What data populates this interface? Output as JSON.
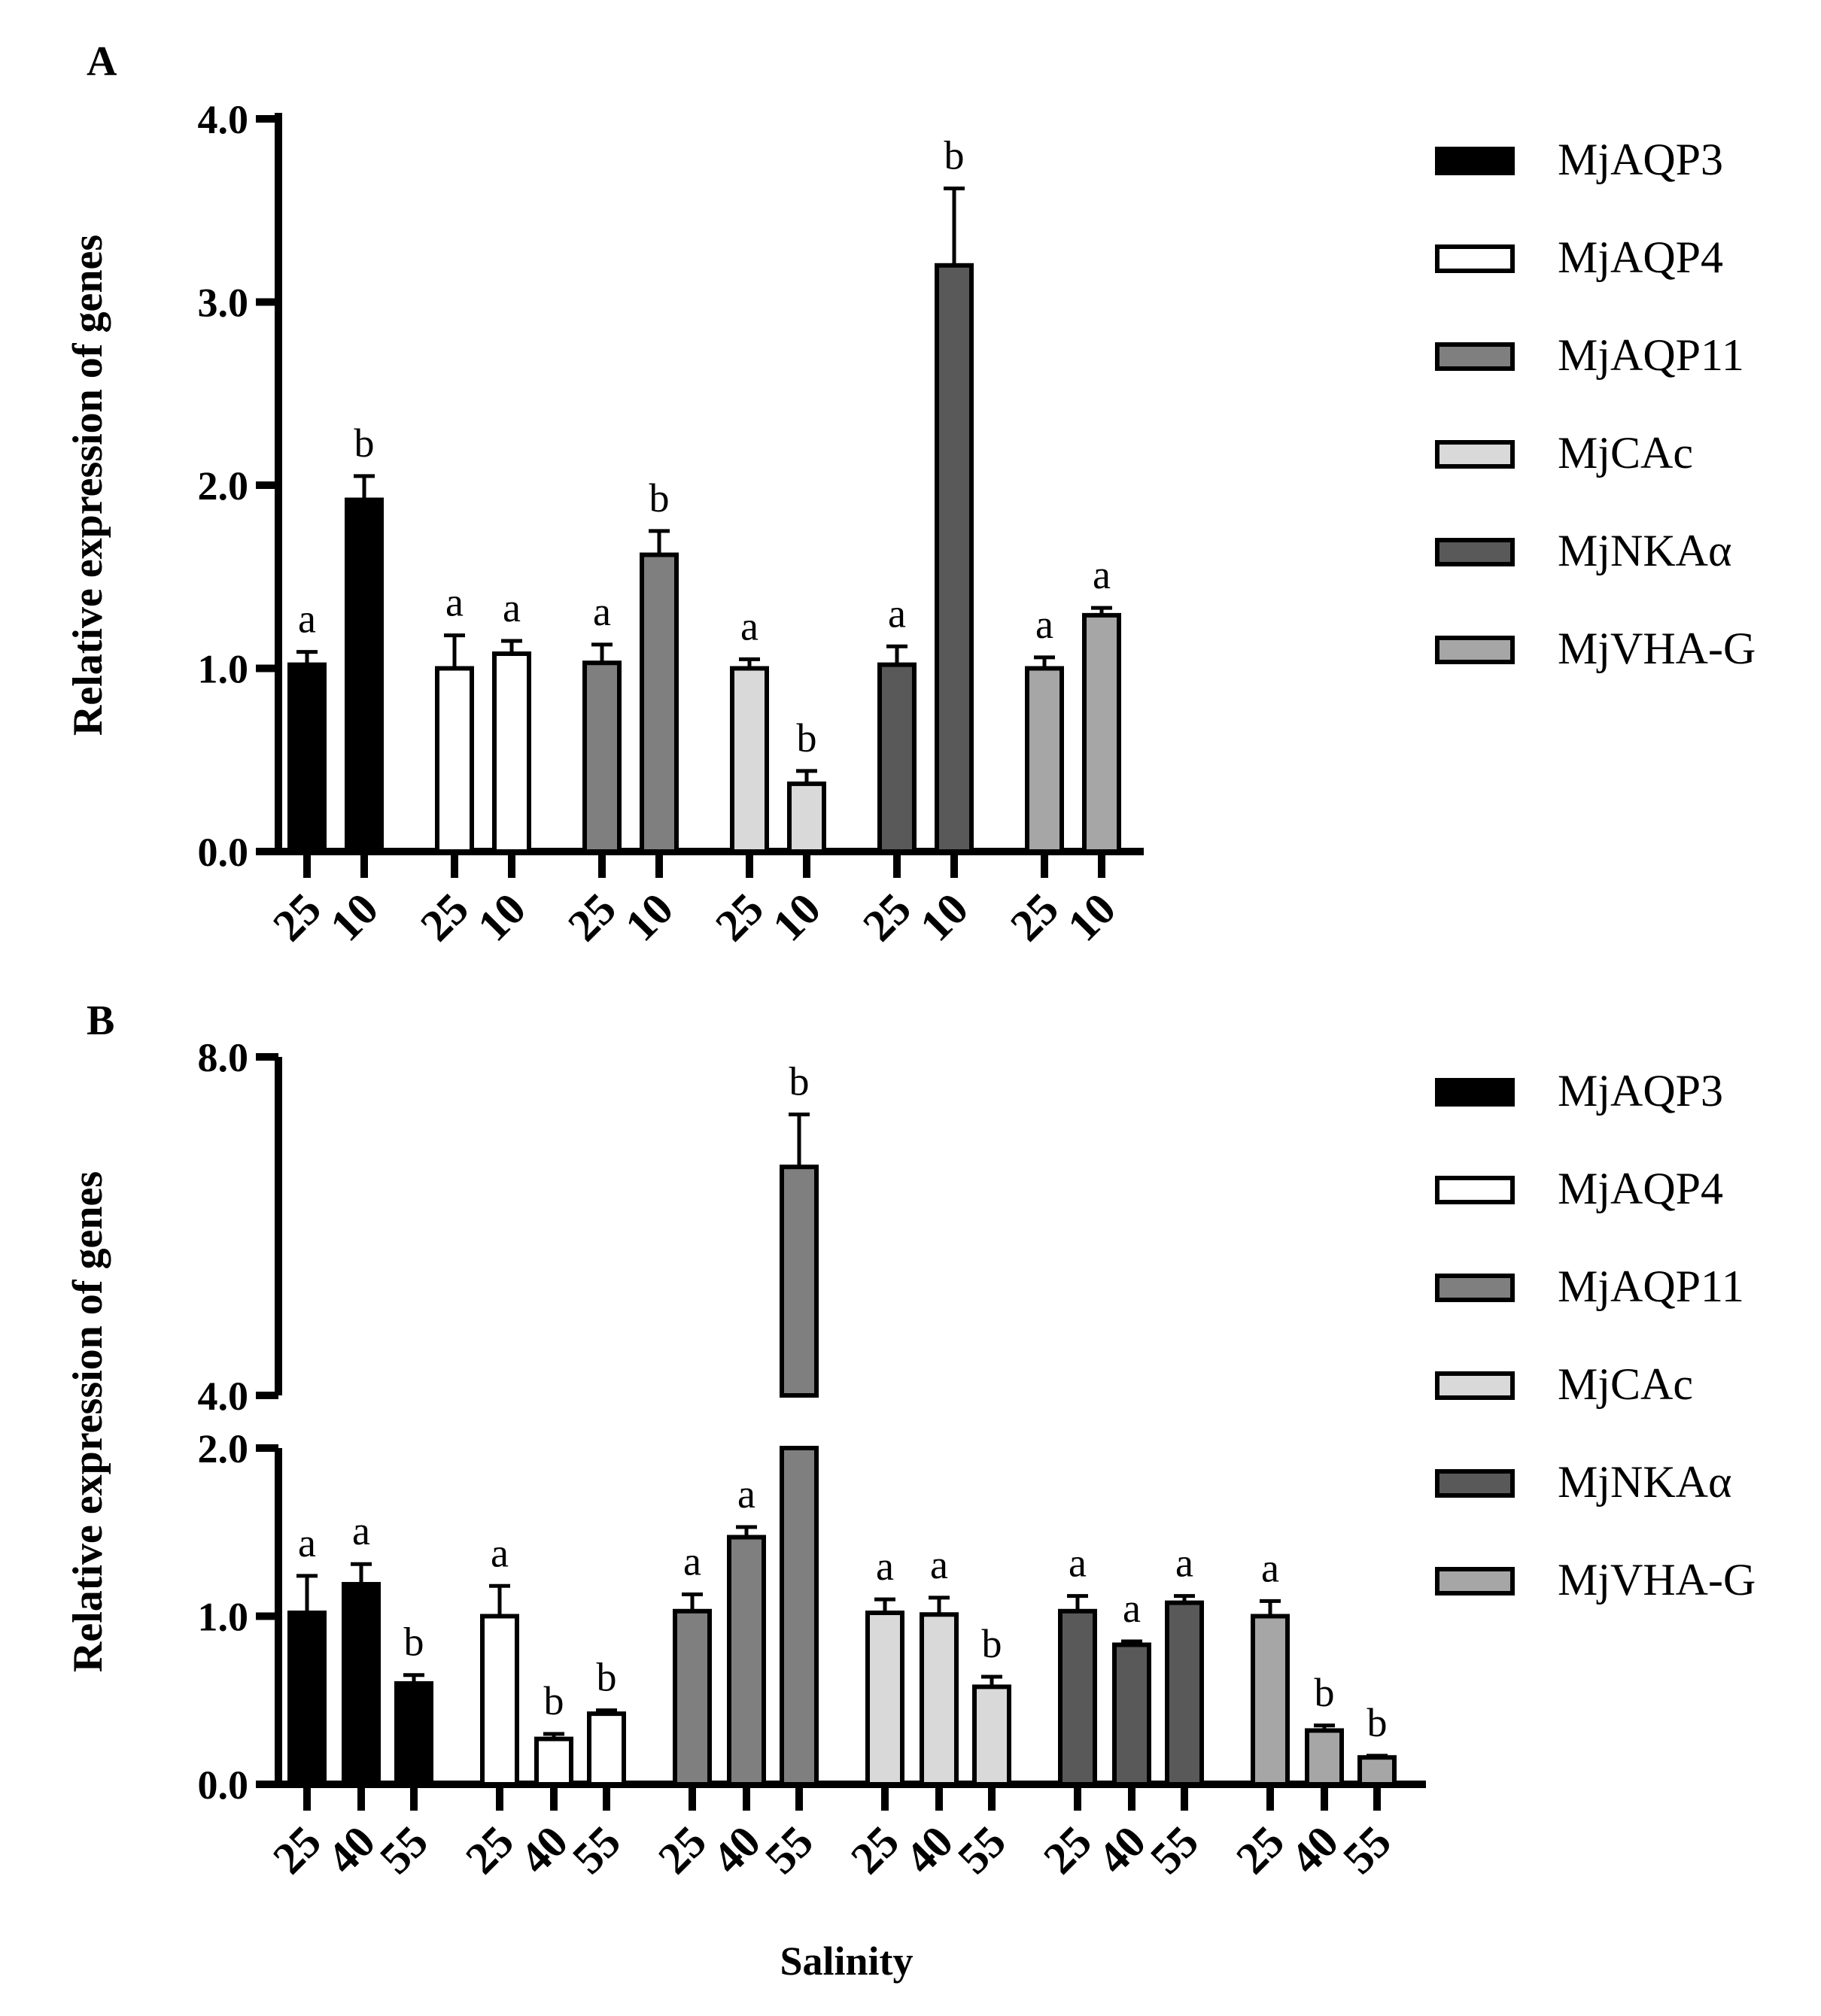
{
  "figure": {
    "xlabel": "Salinity",
    "ylabel": "Relative expression of genes"
  },
  "chart_data": [
    {
      "panel": "A",
      "type": "bar",
      "xlabel": "",
      "ylabel": "Relative expression of genes",
      "ylim": [
        0,
        4
      ],
      "yticks": [
        "0.0",
        "1.0",
        "2.0",
        "3.0",
        "4.0"
      ],
      "series": [
        {
          "name": "MjAQP3",
          "color": "#000000",
          "categories": [
            "25",
            "10"
          ],
          "values": [
            1.02,
            1.92
          ],
          "errors": [
            0.07,
            0.13
          ],
          "letters": [
            "a",
            "b"
          ]
        },
        {
          "name": "MjAQP4",
          "color": "#ffffff",
          "categories": [
            "25",
            "10"
          ],
          "values": [
            1.0,
            1.08
          ],
          "errors": [
            0.18,
            0.07
          ],
          "letters": [
            "a",
            "a"
          ]
        },
        {
          "name": "MjAQP11",
          "color": "#7f7f7f",
          "categories": [
            "25",
            "10"
          ],
          "values": [
            1.03,
            1.62
          ],
          "errors": [
            0.1,
            0.13
          ],
          "letters": [
            "a",
            "b"
          ]
        },
        {
          "name": "MjCAc",
          "color": "#d9d9d9",
          "categories": [
            "25",
            "10"
          ],
          "values": [
            1.0,
            0.37
          ],
          "errors": [
            0.05,
            0.07
          ],
          "letters": [
            "a",
            "b"
          ]
        },
        {
          "name": "MjNKAα",
          "color": "#595959",
          "categories": [
            "25",
            "10"
          ],
          "values": [
            1.02,
            3.2
          ],
          "errors": [
            0.1,
            0.42
          ],
          "letters": [
            "a",
            "b"
          ]
        },
        {
          "name": "MjVHA-G",
          "color": "#a6a6a6",
          "categories": [
            "25",
            "10"
          ],
          "values": [
            1.0,
            1.29
          ],
          "errors": [
            0.06,
            0.04
          ],
          "letters": [
            "a",
            "a"
          ]
        }
      ]
    },
    {
      "panel": "B",
      "type": "bar",
      "xlabel": "Salinity",
      "ylabel": "Relative expression of genes",
      "ylim": [
        0,
        8
      ],
      "axis_break": [
        2,
        4
      ],
      "yticks": [
        "0.0",
        "1.0",
        "2.0",
        "4.0",
        "8.0"
      ],
      "series": [
        {
          "name": "MjAQP3",
          "color": "#000000",
          "categories": [
            "25",
            "40",
            "55"
          ],
          "values": [
            1.02,
            1.19,
            0.6
          ],
          "errors": [
            0.22,
            0.12,
            0.05
          ],
          "letters": [
            "a",
            "a",
            "b"
          ]
        },
        {
          "name": "MjAQP4",
          "color": "#ffffff",
          "categories": [
            "25",
            "40",
            "55"
          ],
          "values": [
            1.0,
            0.27,
            0.42
          ],
          "errors": [
            0.18,
            0.03,
            0.02
          ],
          "letters": [
            "a",
            "b",
            "b"
          ]
        },
        {
          "name": "MjAQP11",
          "color": "#7f7f7f",
          "categories": [
            "25",
            "40",
            "55"
          ],
          "values": [
            1.03,
            1.47,
            6.7
          ],
          "errors": [
            0.1,
            0.06,
            0.62
          ],
          "letters": [
            "a",
            "a",
            "b"
          ]
        },
        {
          "name": "MjCAc",
          "color": "#d9d9d9",
          "categories": [
            "25",
            "40",
            "55"
          ],
          "values": [
            1.02,
            1.01,
            0.58
          ],
          "errors": [
            0.08,
            0.1,
            0.06
          ],
          "letters": [
            "a",
            "a",
            "b"
          ]
        },
        {
          "name": "MjNKAα",
          "color": "#595959",
          "categories": [
            "25",
            "40",
            "55"
          ],
          "values": [
            1.03,
            0.83,
            1.08
          ],
          "errors": [
            0.09,
            0.02,
            0.04
          ],
          "letters": [
            "a",
            "a",
            "a"
          ]
        },
        {
          "name": "MjVHA-G",
          "color": "#a6a6a6",
          "categories": [
            "25",
            "40",
            "55"
          ],
          "values": [
            1.0,
            0.32,
            0.16
          ],
          "errors": [
            0.09,
            0.03,
            0.01
          ],
          "letters": [
            "a",
            "b",
            "b"
          ]
        }
      ]
    }
  ]
}
